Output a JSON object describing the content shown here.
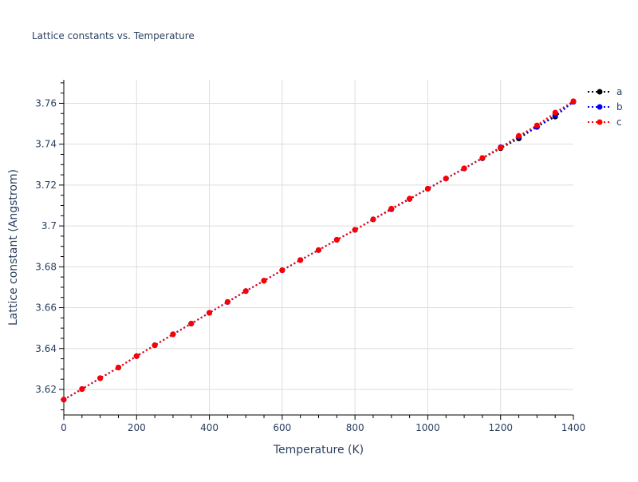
{
  "chart_data": {
    "type": "line",
    "title": "Lattice constants vs. Temperature",
    "xlabel": "Temperature (K)",
    "ylabel": "Lattice constant (Angstrom)",
    "xlim": [
      0,
      1400
    ],
    "ylim": [
      3.6075,
      3.7715
    ],
    "xticks": [
      0,
      200,
      400,
      600,
      800,
      1000,
      1200,
      1400
    ],
    "xtick_labels": [
      "0",
      "200",
      "400",
      "600",
      "800",
      "1000",
      "1200",
      "1400"
    ],
    "yticks": [
      3.62,
      3.64,
      3.66,
      3.68,
      3.7,
      3.72,
      3.74,
      3.76
    ],
    "ytick_labels": [
      "3.62",
      "3.64",
      "3.66",
      "3.68",
      "3.7",
      "3.72",
      "3.74",
      "3.76"
    ],
    "grid": true,
    "legend_position": "right-top",
    "x": [
      0,
      50,
      100,
      150,
      200,
      250,
      300,
      350,
      400,
      450,
      500,
      550,
      600,
      650,
      700,
      750,
      800,
      850,
      900,
      950,
      1000,
      1050,
      1100,
      1150,
      1200,
      1250,
      1300,
      1350,
      1400
    ],
    "series": [
      {
        "name": "a",
        "color": "#000000",
        "line": "dotted",
        "marker": "circle",
        "values": [
          3.615,
          3.6202,
          3.6255,
          3.6307,
          3.6363,
          3.6416,
          3.647,
          3.6522,
          3.6575,
          3.6628,
          3.6681,
          3.6732,
          3.6783,
          3.6833,
          3.6882,
          3.6932,
          3.6981,
          3.7032,
          3.7082,
          3.7132,
          3.7182,
          3.7232,
          3.7281,
          3.7331,
          3.738,
          3.7428,
          3.7485,
          3.7535,
          3.7609
        ]
      },
      {
        "name": "b",
        "color": "#0000ff",
        "line": "dotted",
        "marker": "circle",
        "values": [
          3.615,
          3.6202,
          3.6255,
          3.6307,
          3.6363,
          3.6416,
          3.647,
          3.6522,
          3.6575,
          3.6628,
          3.6681,
          3.6732,
          3.6783,
          3.6833,
          3.6882,
          3.6932,
          3.6981,
          3.7032,
          3.7082,
          3.7132,
          3.7182,
          3.7232,
          3.7281,
          3.7332,
          3.7385,
          3.7438,
          3.7484,
          3.7542,
          3.7607
        ]
      },
      {
        "name": "c",
        "color": "#ff0000",
        "line": "dotted",
        "marker": "circle",
        "values": [
          3.615,
          3.6202,
          3.6255,
          3.6307,
          3.6363,
          3.6416,
          3.647,
          3.6522,
          3.6575,
          3.6628,
          3.6681,
          3.6732,
          3.6783,
          3.6833,
          3.6882,
          3.6932,
          3.6981,
          3.7032,
          3.7085,
          3.7134,
          3.7182,
          3.7232,
          3.7282,
          3.7333,
          3.7383,
          3.7441,
          3.7492,
          3.7555,
          3.761
        ]
      }
    ]
  }
}
